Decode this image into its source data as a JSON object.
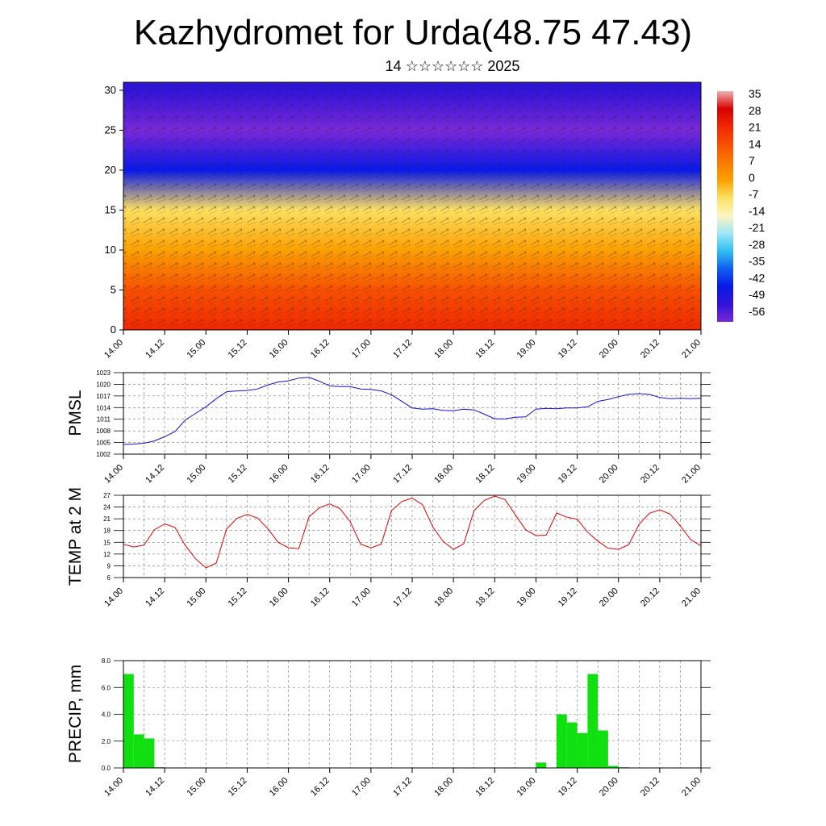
{
  "header": {
    "title": "Kazhydromet for Urda(48.75 47.43)",
    "subtitle": "14 ☆☆☆☆☆☆ 2025"
  },
  "x_ticks": [
    "14.00",
    "14.12",
    "15.00",
    "15.12",
    "16.00",
    "16.12",
    "17.00",
    "17.12",
    "18.00",
    "18.12",
    "19.00",
    "19.12",
    "20.00",
    "20.12",
    "21.00"
  ],
  "chart_data": [
    {
      "type": "heatmap",
      "xlabel": "",
      "ylabel": "",
      "ylim": [
        0,
        31
      ],
      "y_ticks": [
        0,
        5,
        10,
        15,
        20,
        25,
        30
      ],
      "legend_placement": "right",
      "colorbar_labels": [
        "35",
        "28",
        "21",
        "14",
        "7",
        "0",
        "-7",
        "-14",
        "-21",
        "-28",
        "-35",
        "-42",
        "-49",
        "-56"
      ],
      "colorbar_colors": [
        "#f2b0b0",
        "#d80000",
        "#f02800",
        "#f85000",
        "#fa7800",
        "#fca000",
        "#fde060",
        "#fff5c0",
        "#a0e8f8",
        "#30c0f0",
        "#1060f0",
        "#0818e8",
        "#3014d8",
        "#7a28d8"
      ],
      "temperature_profile_note": "",
      "height_levels": [
        0,
        5,
        10,
        15,
        20,
        25,
        30
      ],
      "temperature_by_level": [
        21,
        14,
        2,
        -10,
        -40,
        -56,
        -52
      ]
    },
    {
      "type": "line",
      "ylabel": "PMSL",
      "ylim": [
        1002,
        1023
      ],
      "y_ticks": [
        1002,
        1005,
        1008,
        1011,
        1014,
        1017,
        1020,
        1023
      ],
      "line_color": "#1010d0",
      "x": [
        0,
        3,
        6,
        9,
        12,
        15,
        18,
        21,
        24,
        27,
        30,
        33,
        36,
        39,
        42,
        45,
        48,
        51,
        54,
        57,
        60,
        63,
        66,
        69,
        72,
        75,
        78,
        81,
        84,
        87,
        90,
        93,
        96,
        99,
        102,
        105,
        108,
        111,
        114,
        117,
        120,
        123,
        126,
        129,
        132,
        135,
        138,
        141,
        144,
        147,
        150,
        153,
        156,
        159,
        162,
        165,
        168
      ],
      "values": [
        1004.5,
        1004.6,
        1004.8,
        1005.4,
        1006.5,
        1007.8,
        1010.8,
        1012.5,
        1014.2,
        1016.3,
        1018.1,
        1018.3,
        1018.4,
        1018.8,
        1019.8,
        1020.6,
        1020.9,
        1021.6,
        1021.8,
        1020.8,
        1019.6,
        1019.4,
        1019.4,
        1018.8,
        1018.7,
        1018.3,
        1017.3,
        1015.6,
        1013.9,
        1013.6,
        1013.7,
        1013.3,
        1013.2,
        1013.6,
        1013.4,
        1012.3,
        1011.1,
        1011.1,
        1011.5,
        1011.6,
        1013.6,
        1013.8,
        1013.7,
        1013.9,
        1013.9,
        1014.2,
        1015.6,
        1016.1,
        1016.8,
        1017.4,
        1017.6,
        1017.4,
        1016.6,
        1016.3,
        1016.4,
        1016.3,
        1016.4
      ]
    },
    {
      "type": "line",
      "ylabel": "TEMP at 2 M",
      "ylim": [
        6,
        27
      ],
      "y_ticks": [
        6,
        9,
        12,
        15,
        18,
        21,
        24,
        27
      ],
      "line_color": "#e00000",
      "x": [
        0,
        3,
        6,
        9,
        12,
        15,
        18,
        21,
        24,
        27,
        30,
        33,
        36,
        39,
        42,
        45,
        48,
        51,
        54,
        57,
        60,
        63,
        66,
        69,
        72,
        75,
        78,
        81,
        84,
        87,
        90,
        93,
        96,
        99,
        102,
        105,
        108,
        111,
        114,
        117,
        120,
        123,
        126,
        129,
        132,
        135,
        138,
        141,
        144,
        147,
        150,
        153,
        156,
        159,
        162,
        165,
        168
      ],
      "values": [
        14.5,
        13.8,
        14.3,
        18.2,
        19.7,
        18.8,
        14.2,
        10.8,
        8.5,
        9.7,
        18.4,
        21.1,
        22.1,
        21.2,
        18.5,
        15.0,
        13.6,
        13.4,
        21.5,
        23.8,
        24.8,
        23.6,
        20.2,
        14.5,
        13.6,
        14.5,
        23.1,
        25.4,
        26.3,
        24.6,
        18.9,
        15.2,
        13.2,
        14.6,
        23.1,
        25.7,
        26.8,
        25.9,
        22.0,
        18.2,
        16.7,
        16.8,
        22.5,
        21.4,
        20.9,
        17.6,
        15.3,
        13.5,
        13.2,
        14.4,
        19.6,
        22.4,
        23.3,
        22.2,
        19.2,
        15.7,
        14.1
      ]
    },
    {
      "type": "bar",
      "ylabel": "PRECIP, mm",
      "ylim": [
        0,
        8
      ],
      "y_ticks": [
        "0.0",
        "2.0",
        "4.0",
        "6.0",
        "8.0"
      ],
      "bar_color": "#10e010",
      "bars": [
        {
          "x": 0,
          "value": 7.0
        },
        {
          "x": 3,
          "value": 2.5
        },
        {
          "x": 6,
          "value": 2.2
        },
        {
          "x": 9,
          "value": 0.05
        },
        {
          "x": 120,
          "value": 0.4
        },
        {
          "x": 126,
          "value": 4.0
        },
        {
          "x": 129,
          "value": 3.4
        },
        {
          "x": 132,
          "value": 2.6
        },
        {
          "x": 135,
          "value": 7.0
        },
        {
          "x": 138,
          "value": 2.8
        },
        {
          "x": 141,
          "value": 0.15
        },
        {
          "x": 144,
          "value": 0.05
        }
      ]
    }
  ]
}
